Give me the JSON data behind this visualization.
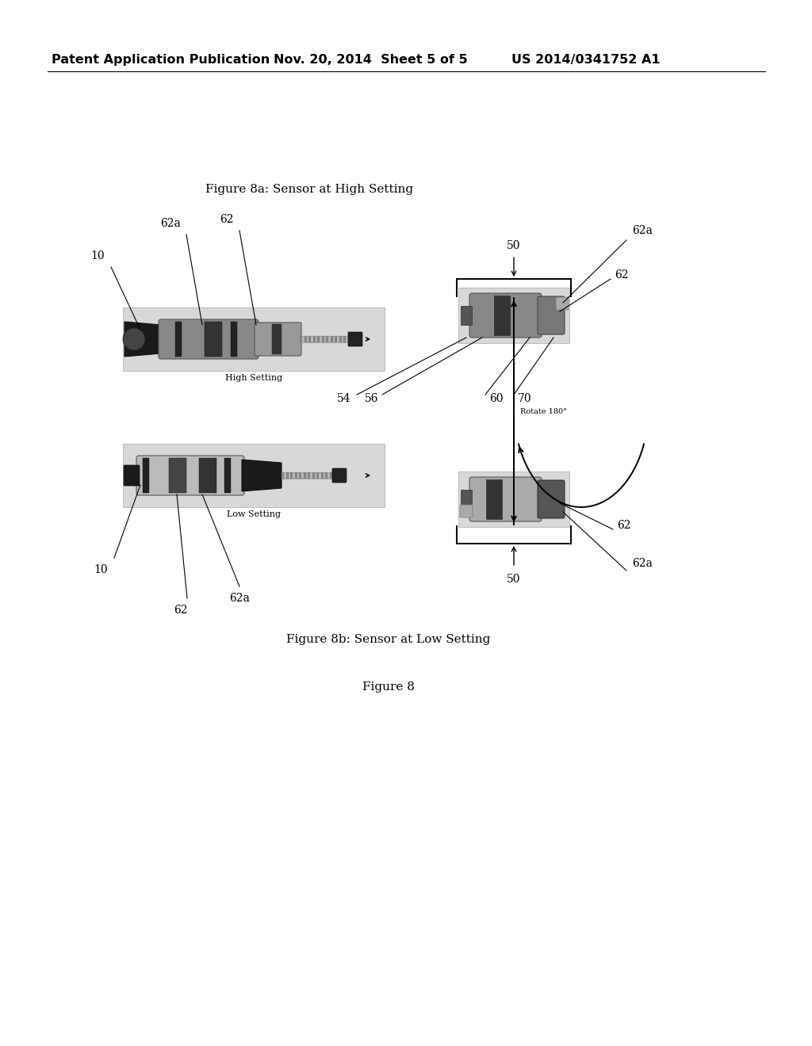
{
  "header_left": "Patent Application Publication",
  "header_mid": "Nov. 20, 2014  Sheet 5 of 5",
  "header_right": "US 2014/0341752 A1",
  "fig8a_title": "Figure 8a: Sensor at High Setting",
  "fig8b_title": "Figure 8b: Sensor at Low Setting",
  "fig_main": "Figure 8",
  "high_setting_lbl": "High Setting",
  "low_setting_lbl": "Low Setting",
  "rotate_lbl": "Rotate 180°",
  "bg_color": "#ffffff",
  "text_color": "#000000",
  "header_fs": 11.5,
  "caption_fs": 11,
  "ref_fs": 10,
  "small_fs": 7,
  "lbl_fs": 8
}
